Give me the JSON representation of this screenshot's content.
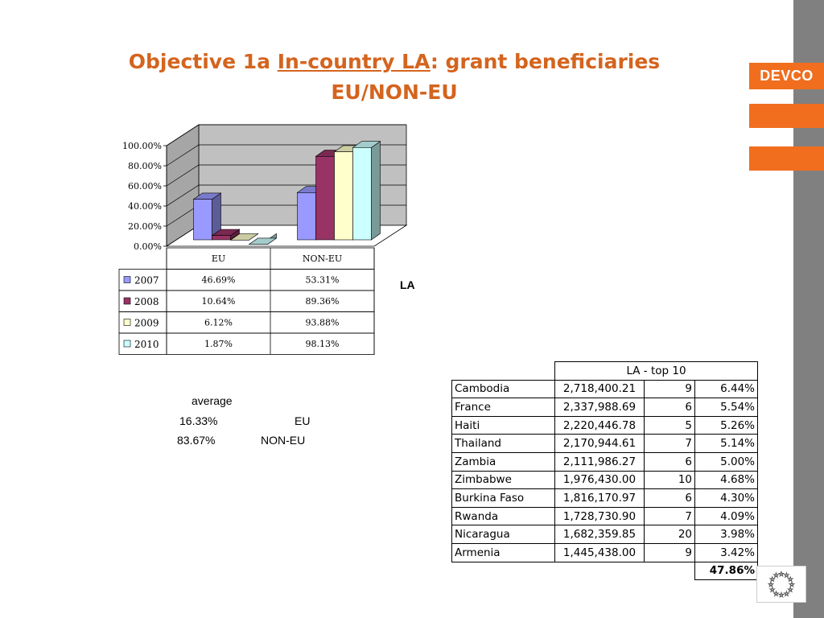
{
  "title": {
    "part1": "Objective 1a ",
    "underlined": "In-country LA",
    "part2": ": grant beneficiaries",
    "line2": "EU/NON-EU"
  },
  "brand": {
    "label": "DEVCO"
  },
  "la_label": "LA",
  "colors": {
    "accent": "#f06e1e",
    "title": "#d4641e",
    "sidebar": "#808080",
    "series": [
      "#9999ff",
      "#993366",
      "#ffffcc",
      "#ccffff"
    ]
  },
  "chart_data": {
    "type": "bar",
    "categories": [
      "EU",
      "NON-EU"
    ],
    "series": [
      {
        "name": "2007",
        "values": [
          46.69,
          53.31
        ],
        "labels": [
          "46.69%",
          "53.31%"
        ]
      },
      {
        "name": "2008",
        "values": [
          10.64,
          89.36
        ],
        "labels": [
          "10.64%",
          "89.36%"
        ]
      },
      {
        "name": "2009",
        "values": [
          6.12,
          93.88
        ],
        "labels": [
          "6.12%",
          "93.88%"
        ]
      },
      {
        "name": "2010",
        "values": [
          1.87,
          98.13
        ],
        "labels": [
          "1.87%",
          "98.13%"
        ]
      }
    ],
    "yticks": [
      "0.00%",
      "20.00%",
      "40.00%",
      "60.00%",
      "80.00%",
      "100.00%"
    ],
    "ylim": [
      0,
      100
    ],
    "style": "3d-clustered-column with data table",
    "grid": true
  },
  "average": {
    "header": "average",
    "rows": [
      {
        "value": "16.33%",
        "label": "EU"
      },
      {
        "value": "83.67%",
        "label": "NON-EU"
      }
    ]
  },
  "top10": {
    "header": "LA - top 10",
    "rows": [
      [
        "Cambodia",
        "2,718,400.21",
        "9",
        "6.44%"
      ],
      [
        "France",
        "2,337,988.69",
        "6",
        "5.54%"
      ],
      [
        "Haiti",
        "2,220,446.78",
        "5",
        "5.26%"
      ],
      [
        "Thailand",
        "2,170,944.61",
        "7",
        "5.14%"
      ],
      [
        "Zambia",
        "2,111,986.27",
        "6",
        "5.00%"
      ],
      [
        "Zimbabwe",
        "1,976,430.00",
        "10",
        "4.68%"
      ],
      [
        "Burkina Faso",
        "1,816,170.97",
        "6",
        "4.30%"
      ],
      [
        "Rwanda",
        "1,728,730.90",
        "7",
        "4.09%"
      ],
      [
        "Nicaragua",
        "1,682,359.85",
        "20",
        "3.98%"
      ],
      [
        "Armenia",
        "1,445,438.00",
        "9",
        "3.42%"
      ]
    ],
    "total": "47.86%"
  }
}
